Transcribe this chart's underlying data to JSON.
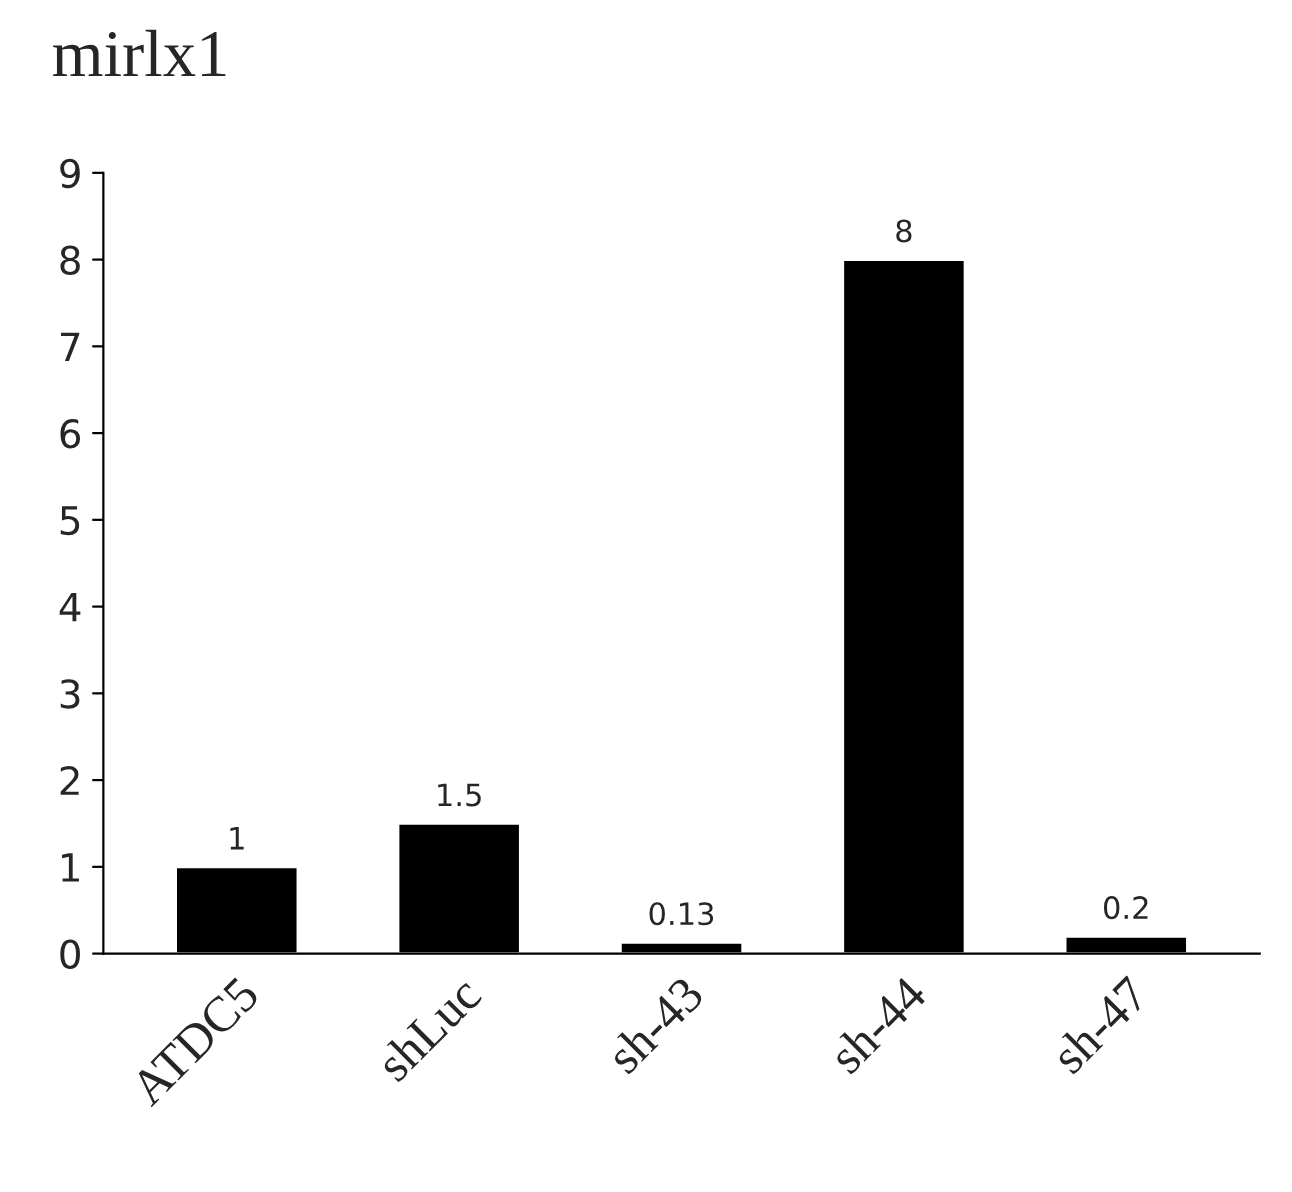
{
  "chart_data": {
    "type": "bar",
    "title": "mirlx1",
    "categories": [
      "ATDC5",
      "shLuc",
      "sh-43",
      "sh-44",
      "sh-47"
    ],
    "values": [
      1,
      1.5,
      0.13,
      8,
      0.2
    ],
    "color": "#000000",
    "ylim": [
      0,
      9
    ],
    "yticks": [
      0,
      1,
      2,
      3,
      4,
      5,
      6,
      7,
      8,
      9
    ],
    "grid": false,
    "data_labels": true
  }
}
